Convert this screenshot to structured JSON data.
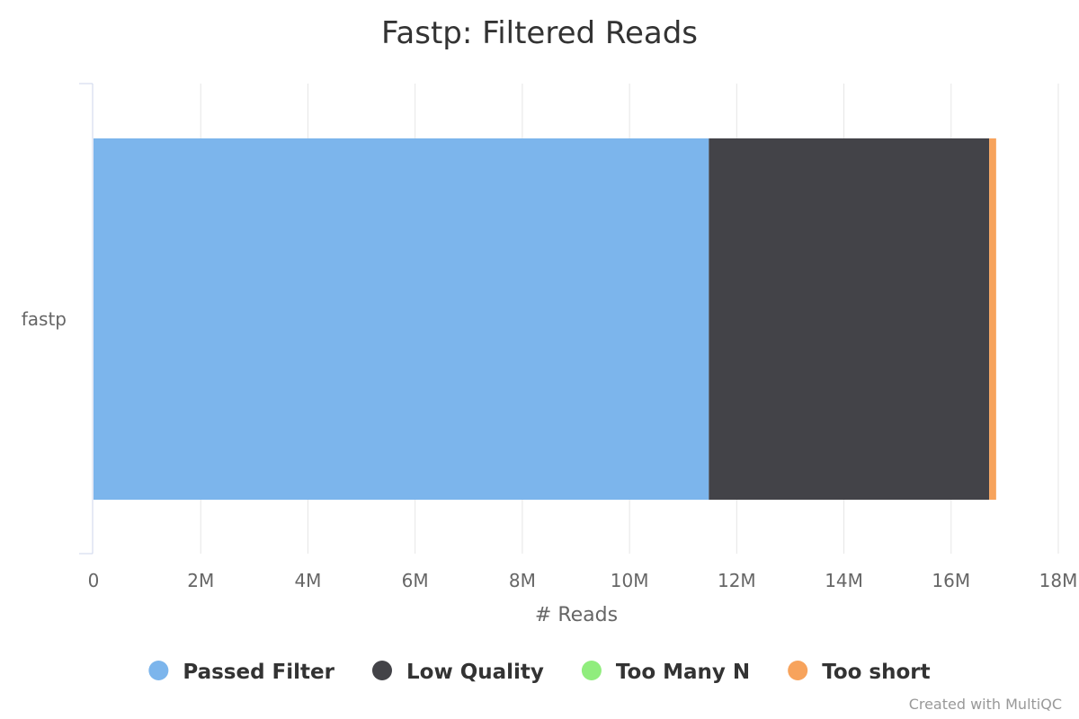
{
  "chart_data": {
    "type": "bar",
    "orientation": "horizontal",
    "stacked": true,
    "title": "Fastp: Filtered Reads",
    "xlabel": "# Reads",
    "ylabel": "",
    "categories": [
      "fastp"
    ],
    "xlim": [
      0,
      18000000
    ],
    "x_ticks": [
      {
        "value": 0,
        "label": "0"
      },
      {
        "value": 2000000,
        "label": "2M"
      },
      {
        "value": 4000000,
        "label": "4M"
      },
      {
        "value": 6000000,
        "label": "6M"
      },
      {
        "value": 8000000,
        "label": "8M"
      },
      {
        "value": 10000000,
        "label": "10M"
      },
      {
        "value": 12000000,
        "label": "12M"
      },
      {
        "value": 14000000,
        "label": "14M"
      },
      {
        "value": 16000000,
        "label": "16M"
      },
      {
        "value": 18000000,
        "label": "18M"
      }
    ],
    "series": [
      {
        "name": "Passed Filter",
        "color": "#7cb5ec",
        "values": [
          11480000
        ]
      },
      {
        "name": "Low Quality",
        "color": "#434348",
        "values": [
          5230000
        ]
      },
      {
        "name": "Too Many N",
        "color": "#90ed7d",
        "values": [
          0
        ]
      },
      {
        "name": "Too short",
        "color": "#f7a35c",
        "values": [
          130000
        ]
      }
    ],
    "grid": true,
    "legend_position": "bottom-center"
  },
  "credit": "Created with MultiQC"
}
